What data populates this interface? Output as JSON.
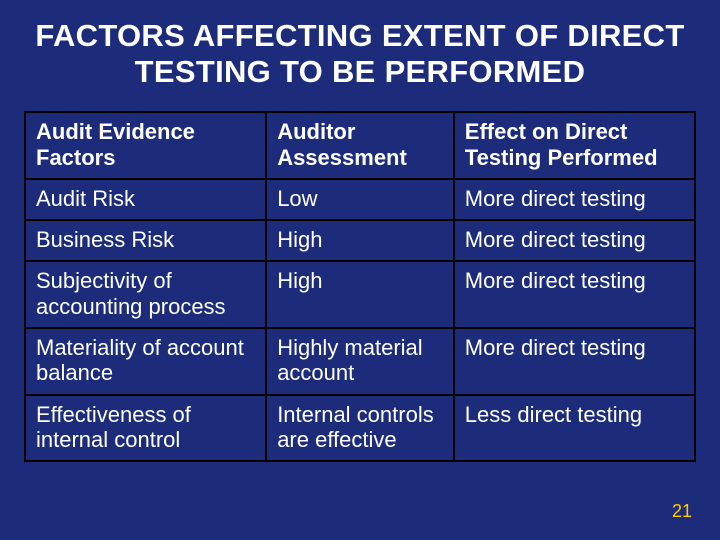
{
  "slide": {
    "background_color": "#1c2b7a",
    "text_color": "#ffffff",
    "border_color": "#000000",
    "accent_color": "#ffcc00",
    "title": "FACTORS AFFECTING EXTENT OF DIRECT TESTING TO BE PERFORMED",
    "title_fontsize": 31,
    "cell_fontsize": 22,
    "page_number": "21"
  },
  "table": {
    "type": "table",
    "column_widths_pct": [
      36,
      28,
      36
    ],
    "columns": [
      "Audit Evidence Factors",
      "Auditor Assessment",
      "Effect on Direct Testing Performed"
    ],
    "rows": [
      [
        "Audit Risk",
        "Low",
        "More direct testing"
      ],
      [
        "Business Risk",
        "High",
        "More direct testing"
      ],
      [
        "Subjectivity of accounting process",
        "High",
        "More direct testing"
      ],
      [
        "Materiality of account balance",
        "Highly material account",
        "More direct testing"
      ],
      [
        "Effectiveness of internal control",
        "Internal controls are effective",
        "Less direct testing"
      ]
    ]
  }
}
